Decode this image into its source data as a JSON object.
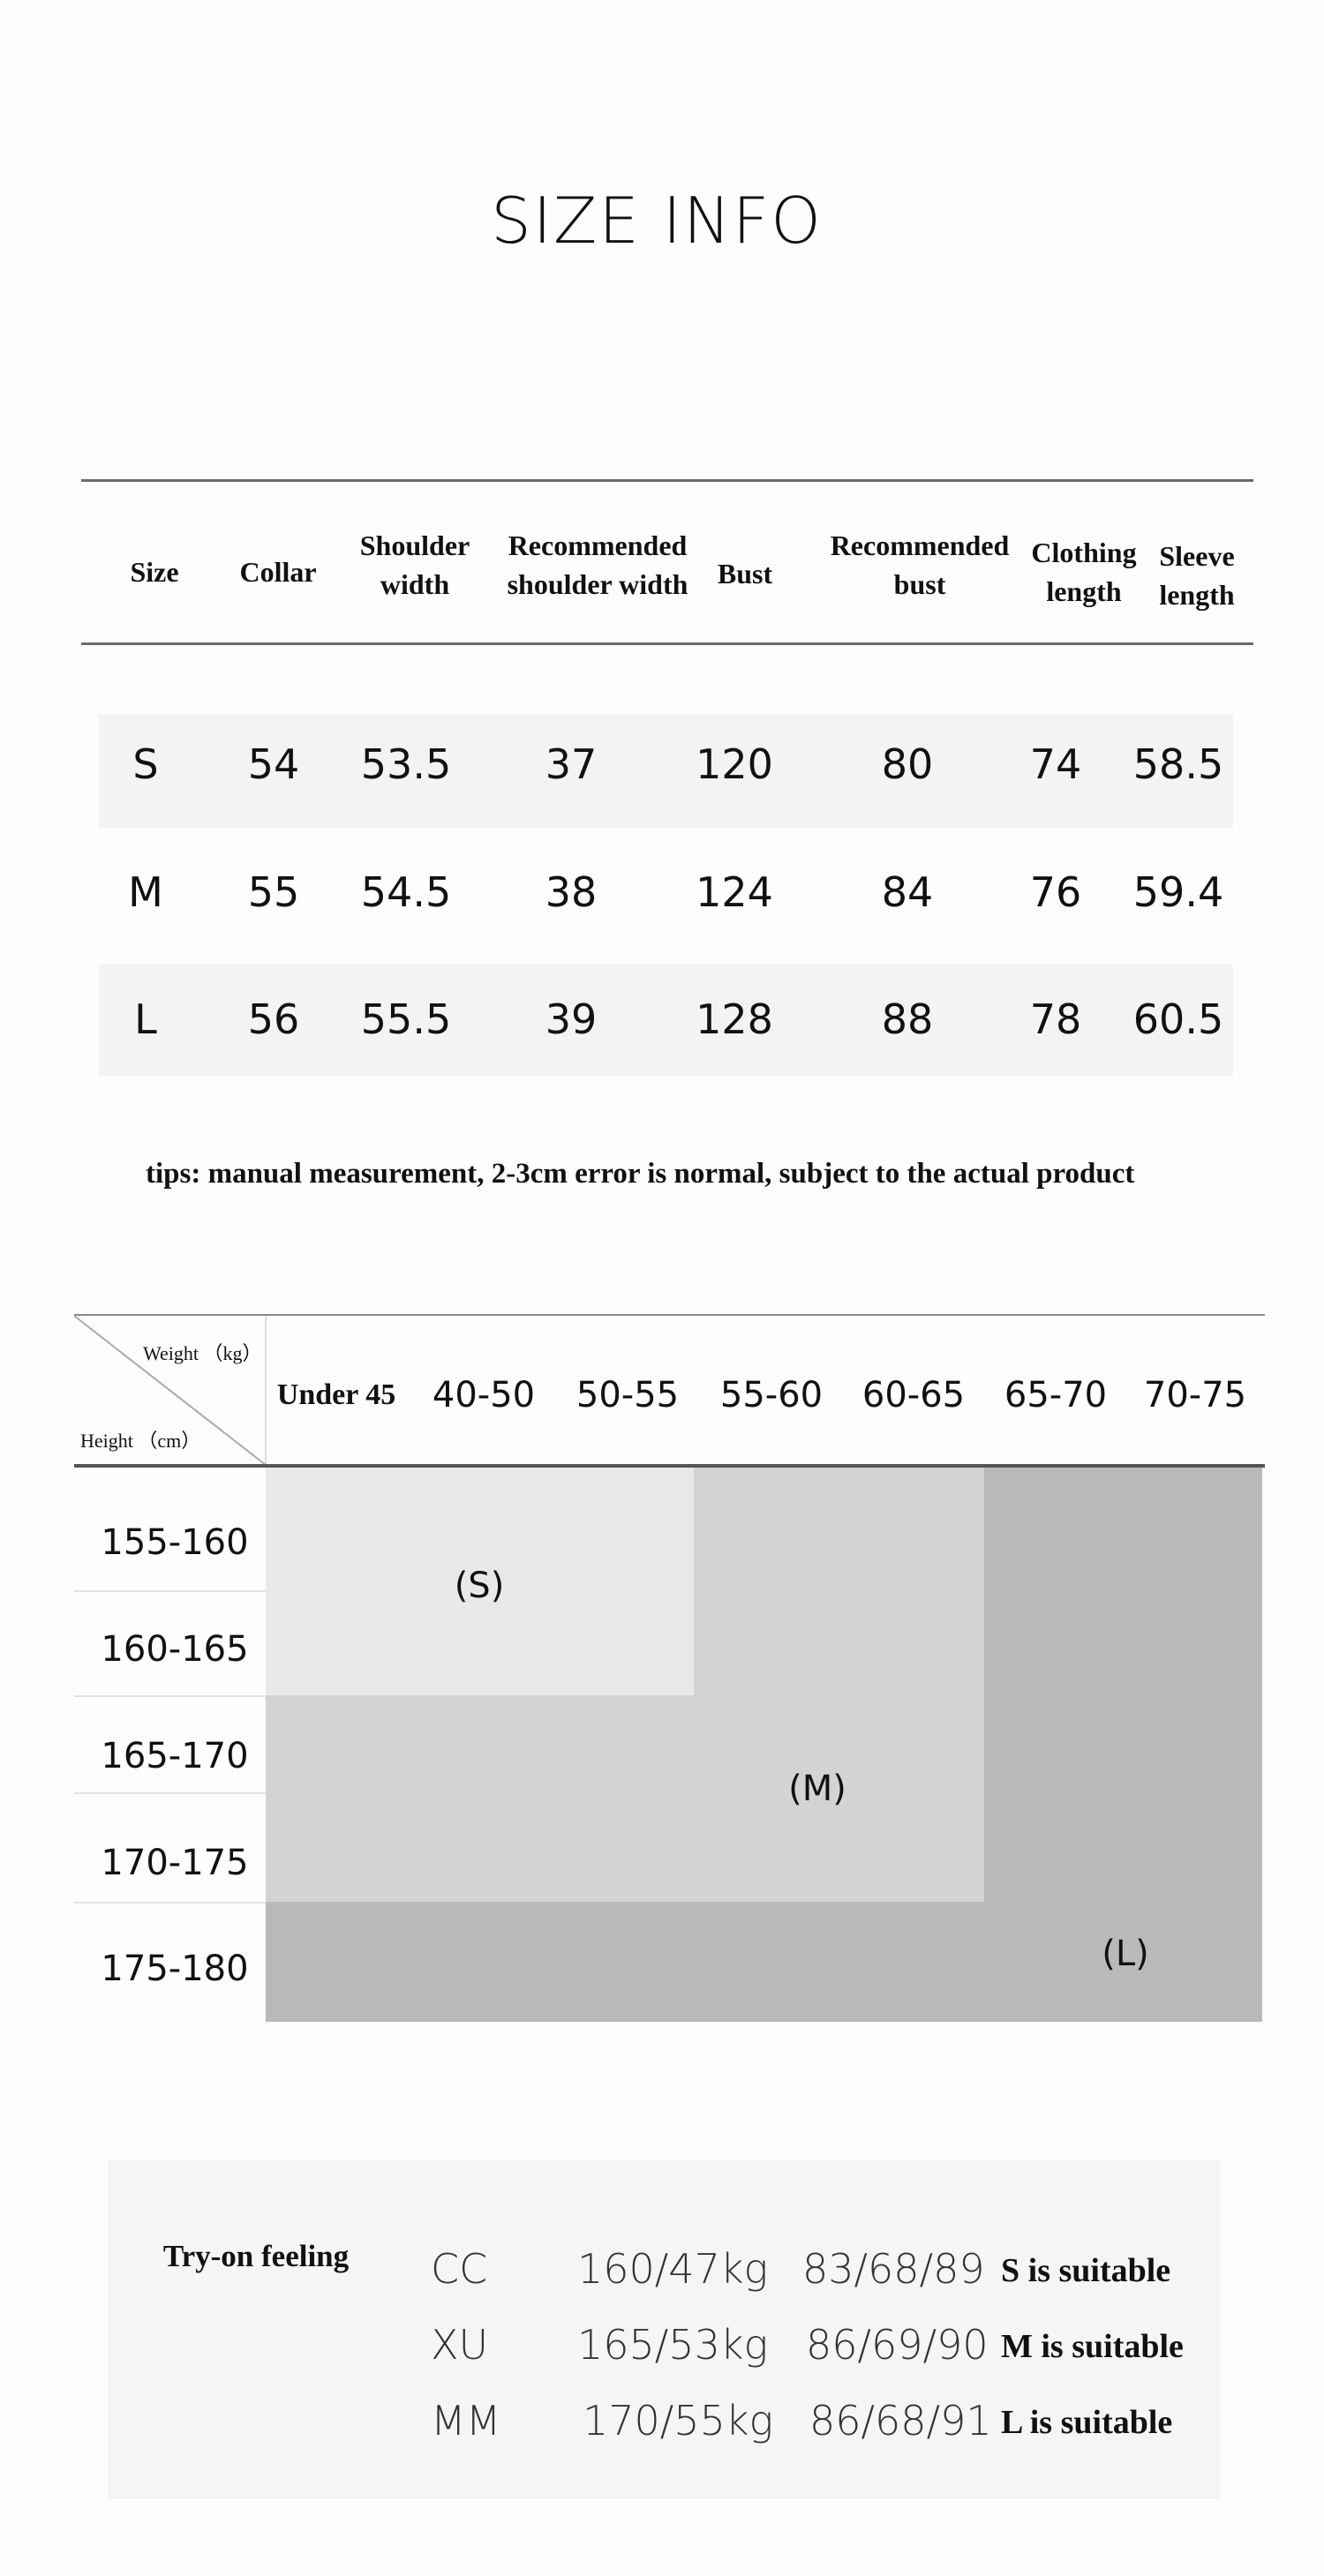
{
  "title": "SIZE INFO",
  "size_table": {
    "headers": [
      "Size",
      "Collar",
      "Shoulder\nwidth",
      "Recommended\nshoulder width",
      "Bust",
      "Recommended\nbust",
      "Clothing\nlength",
      "Sleeve\nlength"
    ],
    "rows": [
      [
        "S",
        "54",
        "53.5",
        "37",
        "120",
        "80",
        "74",
        "58.5"
      ],
      [
        "M",
        "55",
        "54.5",
        "38",
        "124",
        "84",
        "76",
        "59.4"
      ],
      [
        "L",
        "56",
        "55.5",
        "39",
        "128",
        "88",
        "78",
        "60.5"
      ]
    ]
  },
  "tips": "tips: manual measurement, 2-3cm error is normal, subject to the actual product",
  "fit_chart": {
    "weight_label": "Weight （kg）",
    "height_label": "Height （cm）",
    "weights": [
      "Under 45",
      "40-50",
      "50-55",
      "55-60",
      "60-65",
      "65-70",
      "70-75"
    ],
    "heights": [
      "155-160",
      "160-165",
      "165-170",
      "170-175",
      "175-180"
    ],
    "regions": [
      {
        "label": "(S)",
        "color": "#e8e8e8"
      },
      {
        "label": "(M)",
        "color": "#d3d3d3"
      },
      {
        "label": "(L)",
        "color": "#b9b9b9"
      }
    ]
  },
  "try_on": {
    "label": "Try-on feeling",
    "rows": [
      {
        "name": "CC",
        "body": "160/47kg",
        "measurements": "83/68/89",
        "result": "S is suitable"
      },
      {
        "name": "XU",
        "body": "165/53kg",
        "measurements": "86/69/90",
        "result": "M is suitable"
      },
      {
        "name": "MM",
        "body": "170/55kg",
        "measurements": "86/68/91",
        "result": "L is suitable"
      }
    ]
  }
}
